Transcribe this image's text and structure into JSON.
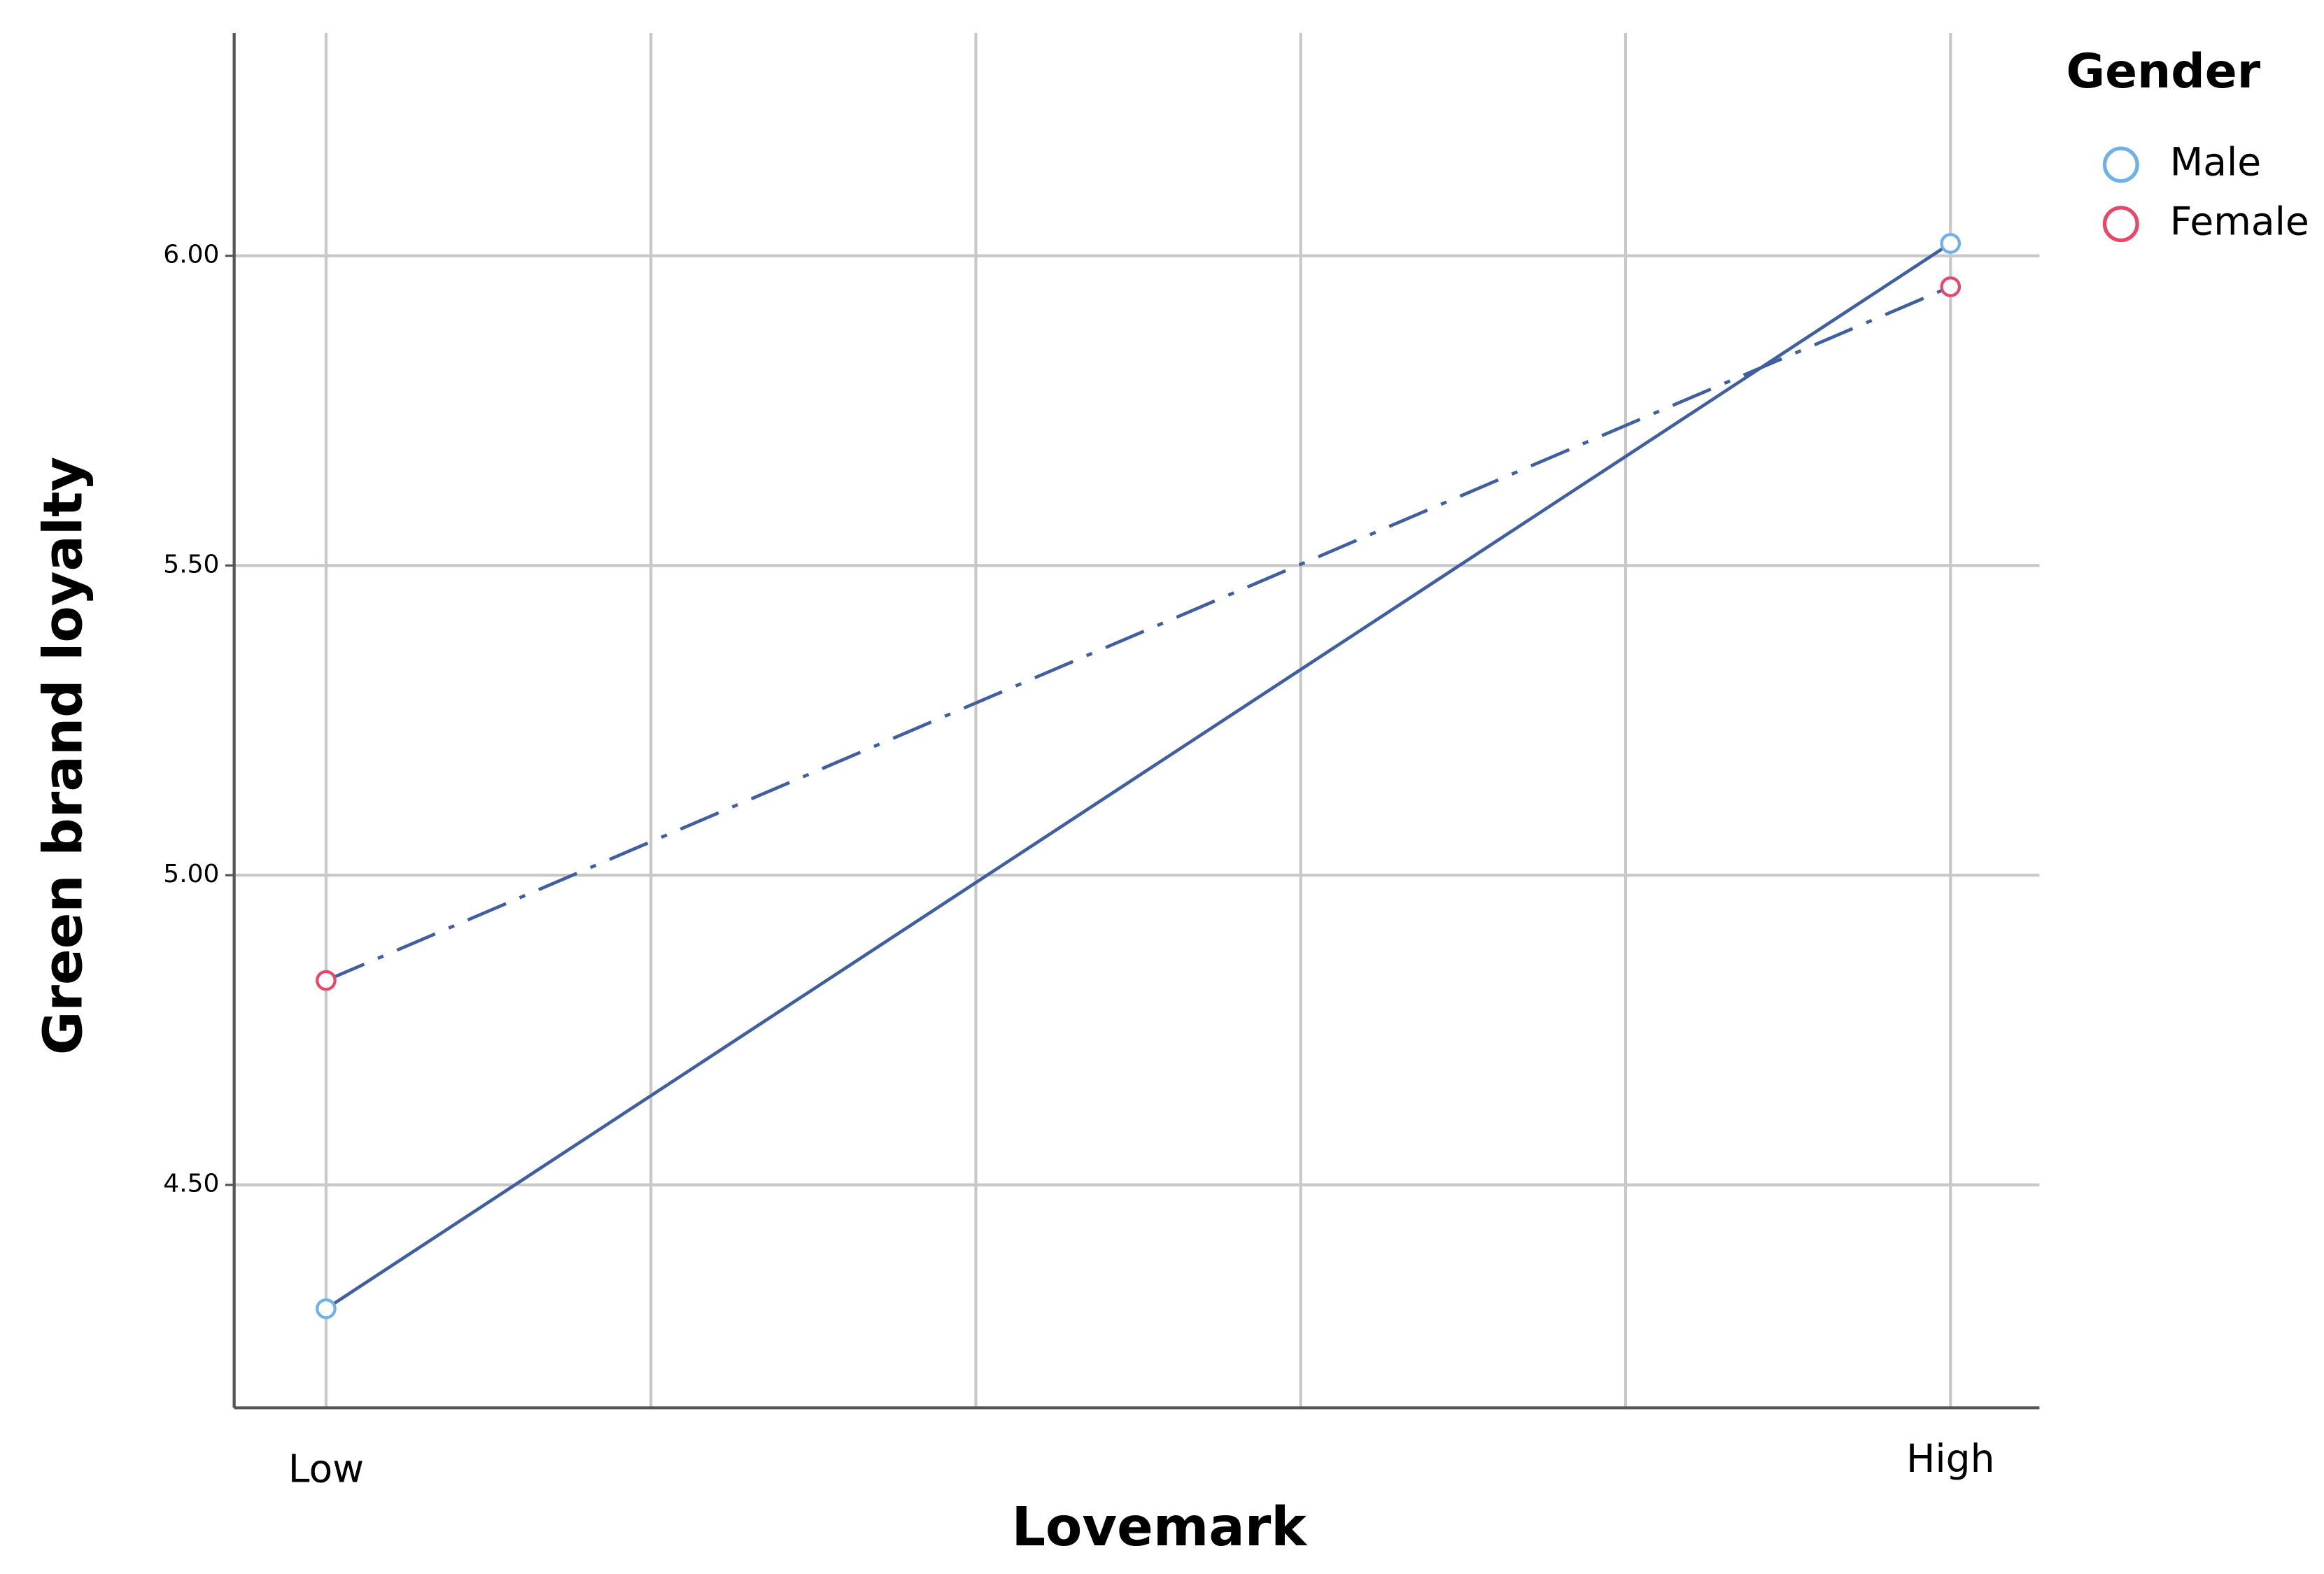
{
  "chart_data": {
    "type": "line",
    "x_label": "Lovemark",
    "y_label": "Green brand loyalty",
    "categories": [
      "Low",
      "High"
    ],
    "series": [
      {
        "name": "Male",
        "color": "#6fb0e8",
        "line_color": "#3f5fa0",
        "line_style": "solid",
        "values": [
          4.3,
          6.02
        ]
      },
      {
        "name": "Female",
        "color": "#e8476a",
        "line_color": "#3f5fa0",
        "line_style": "dash-dot",
        "values": [
          4.83,
          5.95
        ]
      }
    ],
    "ylim": [
      4.14,
      6.36
    ],
    "yticks": [
      {
        "value": 4.5,
        "label": "4.50"
      },
      {
        "value": 5.0,
        "label": "5.00"
      },
      {
        "value": 5.5,
        "label": "5.50"
      },
      {
        "value": 6.0,
        "label": "6.00"
      }
    ],
    "grid": true,
    "legend_title": "Gender",
    "legend_position": "right"
  }
}
